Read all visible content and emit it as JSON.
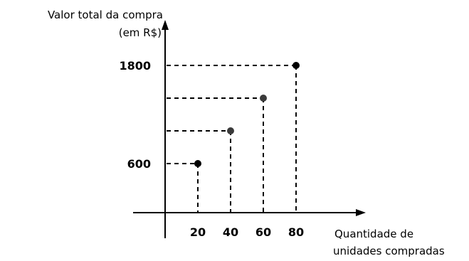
{
  "chart_data": {
    "type": "scatter",
    "title": "",
    "ylabel_lines": [
      "Valor total da compra",
      "(em R$)"
    ],
    "xlabel_lines": [
      "Quantidade de",
      "unidades compradas"
    ],
    "x_ticks": [
      20,
      40,
      60,
      80
    ],
    "y_ticks": [
      600,
      1800
    ],
    "points": [
      {
        "x": 20,
        "y": 600
      },
      {
        "x": 40,
        "y": 1000
      },
      {
        "x": 60,
        "y": 1400
      },
      {
        "x": 80,
        "y": 1800
      }
    ],
    "xlim": [
      0,
      120
    ],
    "ylim": [
      0,
      2000
    ],
    "grid": false,
    "guide_lines": "dashed",
    "colors": {
      "axis": "#000000",
      "marker": "#000000"
    }
  }
}
